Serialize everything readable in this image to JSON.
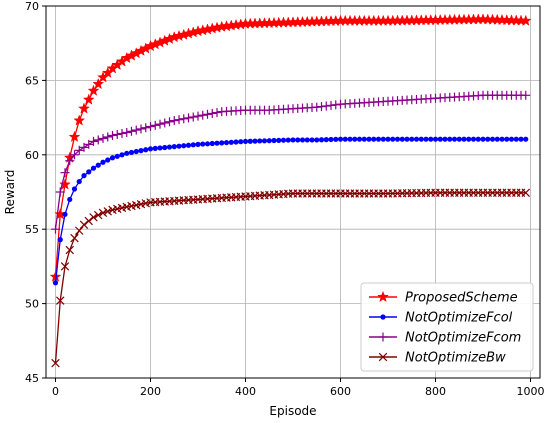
{
  "chart_data": {
    "type": "line",
    "xlabel": "Episode",
    "ylabel": "Reward",
    "xlim": [
      -20,
      1020
    ],
    "ylim": [
      45,
      70
    ],
    "xticks": [
      0,
      200,
      400,
      600,
      800,
      1000
    ],
    "yticks": [
      45,
      50,
      55,
      60,
      65,
      70
    ],
    "grid": true,
    "legend_position": "bottom-right",
    "series": [
      {
        "name": "ProposedScheme",
        "color": "#ff0000",
        "marker": "star",
        "x": [
          0,
          10,
          20,
          30,
          40,
          50,
          60,
          80,
          100,
          120,
          150,
          200,
          250,
          300,
          350,
          400,
          450,
          500,
          550,
          600,
          700,
          800,
          900,
          990
        ],
        "y": [
          51.8,
          56.0,
          58.0,
          59.8,
          61.2,
          62.3,
          63.1,
          64.3,
          65.2,
          65.8,
          66.5,
          67.3,
          67.9,
          68.3,
          68.6,
          68.8,
          68.85,
          68.9,
          68.95,
          69.0,
          69.0,
          69.05,
          69.1,
          69.0
        ]
      },
      {
        "name": "NotOptimizeFcol",
        "color": "#0000ff",
        "marker": "circle",
        "x": [
          0,
          10,
          20,
          30,
          40,
          50,
          60,
          80,
          100,
          120,
          150,
          200,
          250,
          300,
          350,
          400,
          450,
          500,
          550,
          600,
          700,
          800,
          900,
          990
        ],
        "y": [
          51.4,
          54.3,
          56.0,
          57.0,
          57.7,
          58.2,
          58.6,
          59.1,
          59.5,
          59.8,
          60.1,
          60.4,
          60.55,
          60.7,
          60.8,
          60.9,
          60.95,
          61.0,
          61.0,
          61.05,
          61.05,
          61.05,
          61.05,
          61.05
        ]
      },
      {
        "name": "NotOptimizeFcom",
        "color": "#8b008b",
        "marker": "plus",
        "x": [
          0,
          10,
          20,
          30,
          40,
          50,
          60,
          80,
          100,
          120,
          150,
          200,
          250,
          300,
          350,
          400,
          450,
          500,
          550,
          600,
          700,
          800,
          900,
          990
        ],
        "y": [
          55.0,
          57.5,
          58.8,
          59.6,
          60.0,
          60.3,
          60.5,
          60.9,
          61.1,
          61.3,
          61.5,
          61.9,
          62.3,
          62.6,
          62.9,
          63.0,
          63.0,
          63.1,
          63.2,
          63.4,
          63.6,
          63.8,
          64.0,
          64.0
        ]
      },
      {
        "name": "NotOptimizeBw",
        "color": "#800000",
        "marker": "x",
        "x": [
          0,
          10,
          20,
          30,
          40,
          50,
          60,
          80,
          100,
          120,
          150,
          200,
          250,
          300,
          350,
          400,
          450,
          500,
          550,
          600,
          700,
          800,
          900,
          990
        ],
        "y": [
          46.0,
          50.2,
          52.5,
          53.6,
          54.4,
          54.9,
          55.3,
          55.8,
          56.1,
          56.3,
          56.5,
          56.8,
          56.9,
          57.0,
          57.1,
          57.2,
          57.3,
          57.4,
          57.4,
          57.4,
          57.4,
          57.45,
          57.45,
          57.45
        ]
      }
    ]
  }
}
